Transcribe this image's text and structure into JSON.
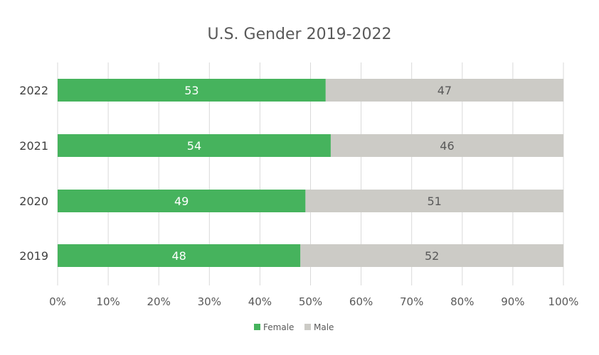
{
  "chart_data": {
    "type": "bar",
    "orientation": "horizontal",
    "stacked": "percent",
    "title": "U.S. Gender 2019-2022",
    "categories": [
      "2022",
      "2021",
      "2020",
      "2019"
    ],
    "series": [
      {
        "name": "Female",
        "values": [
          53,
          54,
          49,
          48
        ],
        "color": "#46b35d"
      },
      {
        "name": "Male",
        "values": [
          47,
          46,
          51,
          52
        ],
        "color": "#cccbc6"
      }
    ],
    "xlim": [
      0,
      100
    ],
    "xticks": [
      "0%",
      "10%",
      "20%",
      "30%",
      "40%",
      "50%",
      "60%",
      "70%",
      "80%",
      "90%",
      "100%"
    ],
    "grid": true,
    "legend": "bottom"
  }
}
